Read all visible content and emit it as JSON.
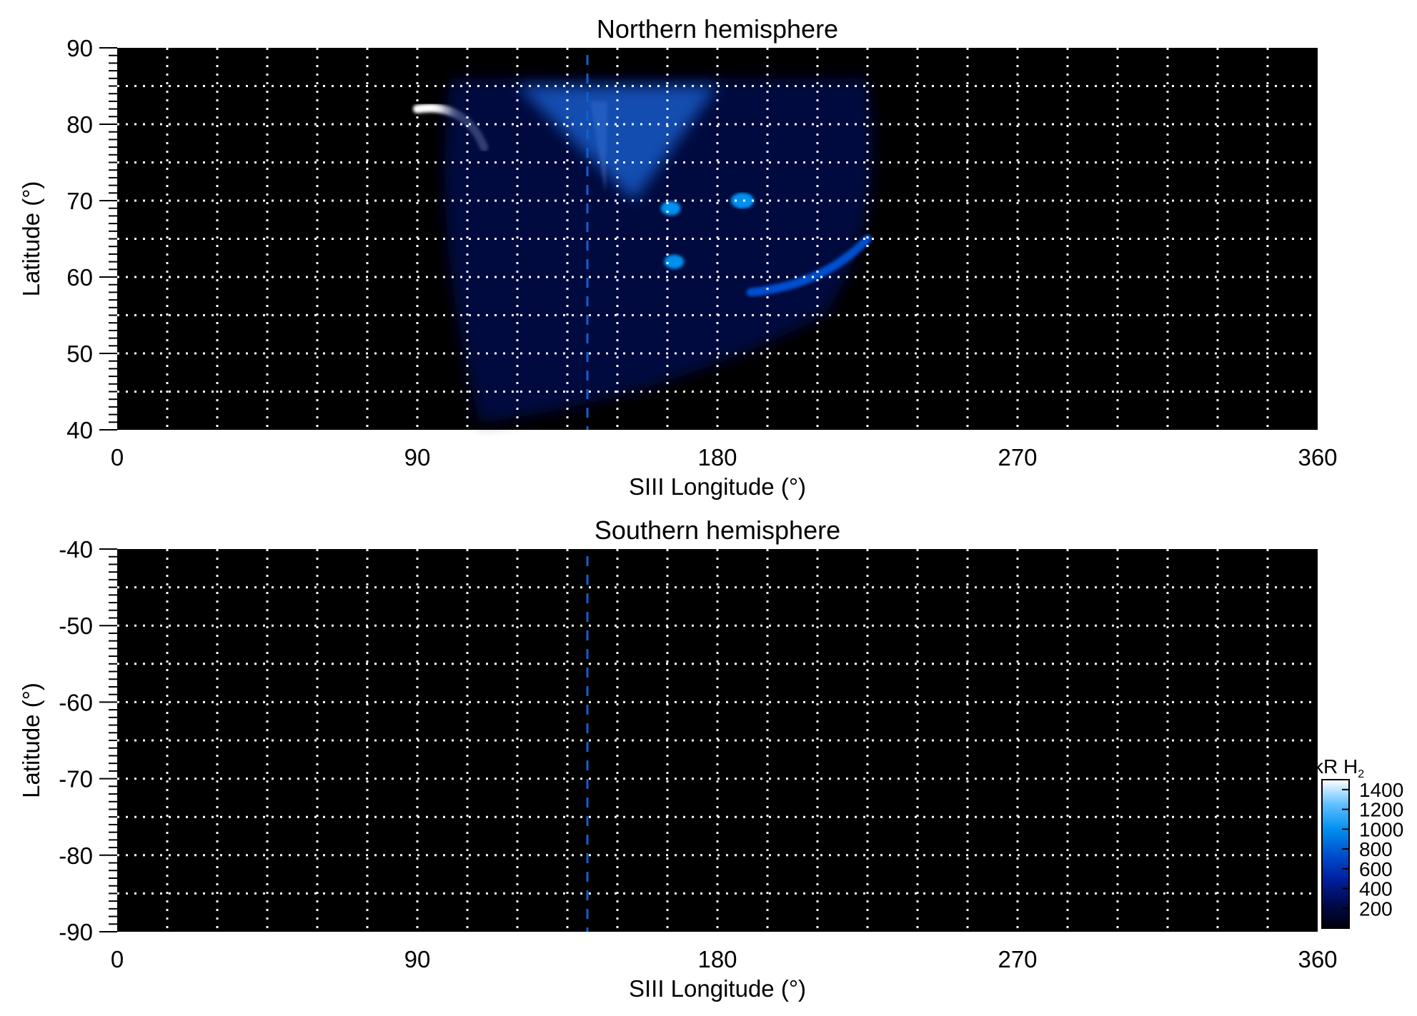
{
  "chart_data": [
    {
      "type": "heatmap",
      "title": "Northern hemisphere",
      "xlabel": "SIII Longitude (°)",
      "ylabel": "Latitude (°)",
      "xlim": [
        0,
        360
      ],
      "ylim": [
        40,
        90
      ],
      "xticks": [
        "0",
        "90",
        "180",
        "270",
        "360"
      ],
      "yticks": [
        "40",
        "50",
        "60",
        "70",
        "80",
        "90"
      ],
      "grid": true,
      "grid_x_step": 15,
      "grid_y_step": 5,
      "reference_longitude": 141,
      "reference_line_color": "#1060d0",
      "emission_features": [
        {
          "label": "arc",
          "lon": [
            90,
            110
          ],
          "lat": [
            82,
            77
          ],
          "level": 1400
        },
        {
          "label": "streak",
          "lon": [
            144,
            146
          ],
          "lat": [
            83,
            71
          ],
          "level": 1400
        },
        {
          "label": "fan",
          "lon": [
            100,
            225
          ],
          "lat": [
            86,
            55
          ],
          "level": 300
        },
        {
          "label": "spot",
          "lon": [
            166,
            167
          ],
          "lat": [
            69,
            62
          ],
          "level": 900
        },
        {
          "label": "spot",
          "lon": [
            187,
            188
          ],
          "lat": [
            70,
            70
          ],
          "level": 900
        },
        {
          "label": "arc",
          "lon": [
            190,
            225
          ],
          "lat": [
            58,
            65
          ],
          "level": 700
        }
      ]
    },
    {
      "type": "heatmap",
      "title": "Southern hemisphere",
      "xlabel": "SIII Longitude (°)",
      "ylabel": "Latitude (°)",
      "xlim": [
        0,
        360
      ],
      "ylim": [
        -90,
        -40
      ],
      "xticks": [
        "0",
        "90",
        "180",
        "270",
        "360"
      ],
      "yticks": [
        "-40",
        "-50",
        "-60",
        "-70",
        "-80",
        "-90"
      ],
      "grid": true,
      "grid_x_step": 15,
      "grid_y_step": 5,
      "reference_longitude": 141,
      "reference_line_color": "#1060d0",
      "emission_features": []
    }
  ],
  "colorbar": {
    "label_main": "kR H",
    "label_sub": "2",
    "ticks": [
      "200",
      "400",
      "600",
      "800",
      "1000",
      "1200",
      "1400"
    ],
    "range": [
      0,
      1500
    ],
    "colors": [
      "#000008",
      "#000a50",
      "#0020a0",
      "#0050d0",
      "#0090f0",
      "#60c0ff",
      "#ffffff"
    ]
  }
}
